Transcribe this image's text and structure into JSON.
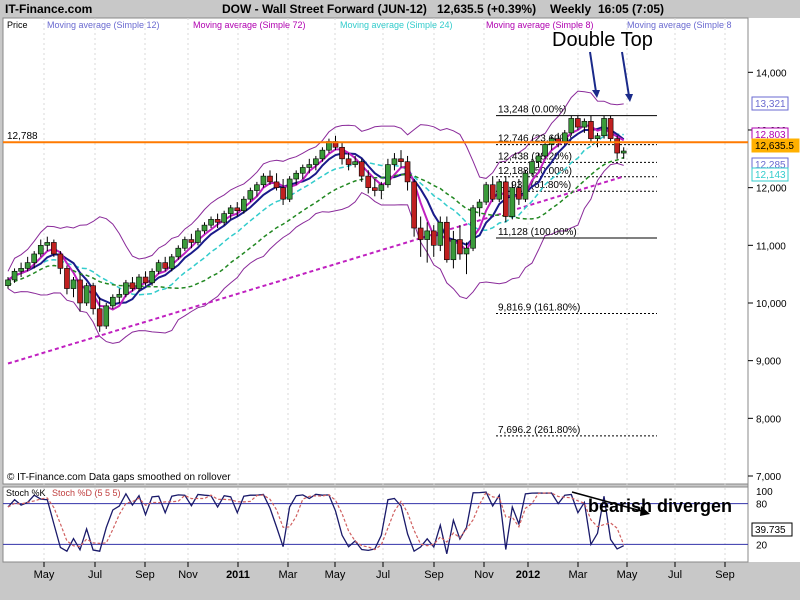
{
  "header": {
    "brand": "IT-Finance.com",
    "instrument": "DOW - Wall Street Forward (JUN-12)",
    "quote": "12,635.5 (+0.39%)",
    "timeframe": "Weekly",
    "time": "16:05 (7:05)"
  },
  "legend": [
    {
      "label": "Price",
      "color": "#000000"
    },
    {
      "label": "Moving average (Simple 12)",
      "color": "#6a6ad0"
    },
    {
      "label": "Moving average (Simple 72)",
      "color": "#b000b0"
    },
    {
      "label": "Moving average (Simple 24)",
      "color": "#33cccc"
    },
    {
      "label": "Moving average (Simple 8)",
      "color": "#b000b0"
    },
    {
      "label": "Moving average (Simple 8",
      "color": "#6a6ad0"
    }
  ],
  "footer_note": "© IT-Finance.com  Data gaps smoothed on rollover",
  "annotations": {
    "double_top": "Double Top",
    "bearish": "bearish divergen"
  },
  "chart_data": {
    "type": "candlestick",
    "title": "DOW - Wall Street Forward (JUN-12)",
    "y_ticks": [
      "14,000",
      "13,000",
      "12,000",
      "11,000",
      "10,000",
      "9,000",
      "8,000",
      "7,000"
    ],
    "ylim": [
      7000,
      14700
    ],
    "x_ticks": [
      "May",
      "Jul",
      "Sep",
      "Nov",
      "2011",
      "Mar",
      "May",
      "Jul",
      "Sep",
      "Nov",
      "2012",
      "Mar",
      "May",
      "Jul",
      "Sep"
    ],
    "horizontal_level": {
      "label": "12,788",
      "value": 12788
    },
    "fib_levels": [
      {
        "label": "13,248 (0.00%)",
        "value": 13248
      },
      {
        "label": "12,746 (23.60%)",
        "value": 12746
      },
      {
        "label": "12,438 (38.20%)",
        "value": 12438
      },
      {
        "label": "12,188 (50.00%)",
        "value": 12188
      },
      {
        "label": "11,938 (61.80%)",
        "value": 11938
      },
      {
        "label": "11,128 (100.00%)",
        "value": 11128
      },
      {
        "label": "9,816.9 (161.80%)",
        "value": 9816.9
      },
      {
        "label": "7,696.2 (261.80%)",
        "value": 7696.2
      }
    ],
    "right_badges": [
      {
        "label": "13,321",
        "color": "#6a6ad0"
      },
      {
        "label": "12,803",
        "color": "#b000b0"
      },
      {
        "label": "12,635.5",
        "color": "#ffb000"
      },
      {
        "label": "12,285",
        "color": "#6a6ad0"
      },
      {
        "label": "12,143",
        "color": "#33cccc"
      }
    ],
    "candles": [
      [
        10300,
        10450,
        10250,
        10400
      ],
      [
        10400,
        10600,
        10350,
        10550
      ],
      [
        10550,
        10700,
        10450,
        10600
      ],
      [
        10600,
        10800,
        10550,
        10700
      ],
      [
        10700,
        10900,
        10600,
        10850
      ],
      [
        10850,
        11100,
        10800,
        11000
      ],
      [
        11000,
        11150,
        10900,
        11050
      ],
      [
        11050,
        11100,
        10800,
        10850
      ],
      [
        10850,
        10900,
        10500,
        10600
      ],
      [
        10600,
        10650,
        10150,
        10250
      ],
      [
        10250,
        10450,
        10100,
        10400
      ],
      [
        10400,
        10500,
        9850,
        10000
      ],
      [
        10000,
        10350,
        9950,
        10300
      ],
      [
        10300,
        10350,
        9800,
        9900
      ],
      [
        9900,
        10100,
        9500,
        9600
      ],
      [
        9600,
        10000,
        9550,
        9950
      ],
      [
        9950,
        10150,
        9900,
        10100
      ],
      [
        10100,
        10250,
        10000,
        10150
      ],
      [
        10150,
        10400,
        10100,
        10350
      ],
      [
        10350,
        10450,
        10200,
        10250
      ],
      [
        10250,
        10500,
        10200,
        10450
      ],
      [
        10450,
        10550,
        10300,
        10350
      ],
      [
        10350,
        10600,
        10300,
        10550
      ],
      [
        10550,
        10750,
        10500,
        10700
      ],
      [
        10700,
        10800,
        10550,
        10600
      ],
      [
        10600,
        10850,
        10550,
        10800
      ],
      [
        10800,
        11000,
        10750,
        10950
      ],
      [
        10950,
        11150,
        10900,
        11100
      ],
      [
        11100,
        11200,
        10950,
        11050
      ],
      [
        11050,
        11300,
        11000,
        11250
      ],
      [
        11250,
        11400,
        11200,
        11350
      ],
      [
        11350,
        11500,
        11300,
        11450
      ],
      [
        11450,
        11550,
        11300,
        11400
      ],
      [
        11400,
        11600,
        11350,
        11550
      ],
      [
        11550,
        11700,
        11450,
        11650
      ],
      [
        11650,
        11750,
        11500,
        11600
      ],
      [
        11600,
        11850,
        11550,
        11800
      ],
      [
        11800,
        12000,
        11750,
        11950
      ],
      [
        11950,
        12100,
        11850,
        12050
      ],
      [
        12050,
        12250,
        12000,
        12200
      ],
      [
        12200,
        12300,
        12050,
        12100
      ],
      [
        12100,
        12250,
        11950,
        12000
      ],
      [
        12000,
        12150,
        11700,
        11800
      ],
      [
        11800,
        12200,
        11750,
        12150
      ],
      [
        12150,
        12300,
        12050,
        12250
      ],
      [
        12250,
        12400,
        12150,
        12350
      ],
      [
        12350,
        12500,
        12250,
        12400
      ],
      [
        12400,
        12550,
        12300,
        12500
      ],
      [
        12500,
        12700,
        12450,
        12650
      ],
      [
        12650,
        12850,
        12600,
        12800
      ],
      [
        12800,
        12900,
        12650,
        12700
      ],
      [
        12700,
        12800,
        12400,
        12500
      ],
      [
        12500,
        12600,
        12300,
        12400
      ],
      [
        12400,
        12550,
        12350,
        12450
      ],
      [
        12450,
        12500,
        12100,
        12200
      ],
      [
        12200,
        12300,
        11900,
        12000
      ],
      [
        12000,
        12150,
        11850,
        11950
      ],
      [
        11950,
        12100,
        11800,
        12050
      ],
      [
        12050,
        12500,
        12000,
        12400
      ],
      [
        12400,
        12600,
        12300,
        12500
      ],
      [
        12500,
        12650,
        12350,
        12450
      ],
      [
        12450,
        12550,
        11950,
        12100
      ],
      [
        12100,
        12150,
        11150,
        11300
      ],
      [
        11300,
        11500,
        10800,
        11100
      ],
      [
        11100,
        11400,
        10700,
        11250
      ],
      [
        11250,
        11350,
        10800,
        11000
      ],
      [
        11000,
        11500,
        10900,
        11400
      ],
      [
        11400,
        11500,
        10700,
        10750
      ],
      [
        10750,
        11250,
        10600,
        11100
      ],
      [
        11100,
        11350,
        10750,
        10850
      ],
      [
        10850,
        11050,
        10500,
        10950
      ],
      [
        10950,
        11700,
        10900,
        11650
      ],
      [
        11650,
        11800,
        11500,
        11750
      ],
      [
        11750,
        12100,
        11700,
        12050
      ],
      [
        12050,
        12200,
        11750,
        11800
      ],
      [
        11800,
        12150,
        11750,
        12100
      ],
      [
        12100,
        12200,
        11400,
        11500
      ],
      [
        11500,
        12100,
        11450,
        12000
      ],
      [
        12000,
        12150,
        11700,
        11800
      ],
      [
        11800,
        12300,
        11750,
        12250
      ],
      [
        12250,
        12500,
        12200,
        12450
      ],
      [
        12450,
        12600,
        12350,
        12550
      ],
      [
        12550,
        12800,
        12500,
        12750
      ],
      [
        12750,
        12900,
        12650,
        12850
      ],
      [
        12850,
        12950,
        12700,
        12800
      ],
      [
        12800,
        13000,
        12750,
        12950
      ],
      [
        12950,
        13250,
        12900,
        13200
      ],
      [
        13200,
        13250,
        13000,
        13050
      ],
      [
        13050,
        13200,
        12950,
        13150
      ],
      [
        13150,
        13250,
        12800,
        12850
      ],
      [
        12850,
        12950,
        12700,
        12900
      ],
      [
        12900,
        13250,
        12850,
        13200
      ],
      [
        13200,
        13250,
        12800,
        12850
      ],
      [
        12850,
        12900,
        12500,
        12600
      ],
      [
        12600,
        12700,
        12500,
        12635.5
      ]
    ]
  }
}
